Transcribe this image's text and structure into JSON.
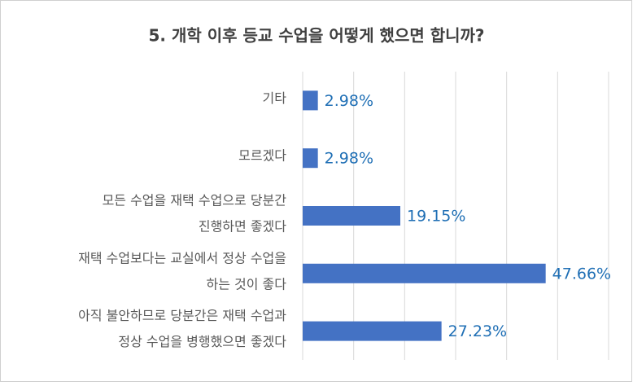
{
  "chart_data": {
    "type": "bar",
    "orientation": "horizontal",
    "title": "5. 개학 이후 등교 수업을 어떻게 했으면 합니까?",
    "categories": [
      [
        "기타"
      ],
      [
        "모르겠다"
      ],
      [
        "모든 수업을 재택 수업으로 당분간",
        "진행하면 좋겠다"
      ],
      [
        "재택 수업보다는 교실에서 정상 수업을",
        "하는 것이 좋다"
      ],
      [
        "아직 불안하므로 당분간은 재택 수업과",
        "정상 수업을 병행했으면 좋겠다"
      ]
    ],
    "values": [
      2.98,
      2.98,
      19.15,
      47.66,
      27.23
    ],
    "value_labels": [
      "2.98%",
      "2.98%",
      "19.15%",
      "47.66%",
      "27.23%"
    ],
    "color": "#4472c4",
    "xlim": [
      0,
      60
    ],
    "xticks": [
      0,
      10,
      20,
      30,
      40,
      50,
      60
    ],
    "grid": true
  }
}
